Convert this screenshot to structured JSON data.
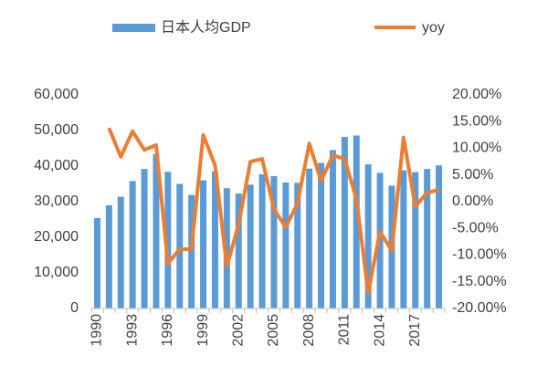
{
  "chart_data": {
    "type": "bar-line",
    "categories": [
      "1990",
      null,
      null,
      "1993",
      null,
      null,
      "1996",
      null,
      null,
      "1999",
      null,
      null,
      "2002",
      null,
      null,
      "2005",
      null,
      null,
      "2008",
      null,
      null,
      "2011",
      null,
      null,
      "2014",
      null,
      null,
      "2017",
      null,
      null
    ],
    "series": [
      {
        "name": "日本人均GDP",
        "type": "bar",
        "color": "#5b9bd5",
        "values": [
          25400,
          29000,
          31400,
          35800,
          39200,
          43400,
          38400,
          35000,
          31900,
          36000,
          38500,
          33800,
          32300,
          34800,
          37700,
          37200,
          35400,
          35300,
          39300,
          40900,
          44500,
          48200,
          48600,
          40500,
          38100,
          34500,
          38800,
          38300,
          39200,
          40200
        ]
      },
      {
        "name": "yoy",
        "type": "line",
        "color": "#ed7d31",
        "axis": "y2",
        "values": [
          null,
          13.8,
          8.4,
          13.2,
          9.7,
          10.6,
          -11.6,
          -8.9,
          -8.9,
          12.5,
          6.8,
          -12.1,
          -4.3,
          7.5,
          8.0,
          -1.4,
          -4.8,
          -0.3,
          10.9,
          3.9,
          8.7,
          8.0,
          0.5,
          -17.1,
          -5.6,
          -9.2,
          12.0,
          -0.9,
          1.7,
          2.2
        ]
      }
    ],
    "ylim": [
      0,
      60000
    ],
    "yticks": [
      0,
      {
        "value": 10000,
        "label": "10,000"
      },
      {
        "value": 20000,
        "label": "20,000"
      },
      {
        "value": 30000,
        "label": "30,000"
      },
      {
        "value": 40000,
        "label": "40,000"
      },
      {
        "value": 50000,
        "label": "50,000"
      },
      {
        "value": 60000,
        "label": "60,000"
      }
    ],
    "y2lim": [
      -20,
      20
    ],
    "y2ticks": [
      {
        "value": 20,
        "label": "20.00%"
      },
      {
        "value": 15,
        "label": "15.00%"
      },
      {
        "value": 10,
        "label": "10.00%"
      },
      {
        "value": 5,
        "label": "5.00%"
      },
      {
        "value": 0,
        "label": "0.00%"
      },
      {
        "value": -5,
        "label": "-5.00%"
      },
      {
        "value": -10,
        "label": "-10.00%"
      },
      {
        "value": -15,
        "label": "-15.00%"
      },
      {
        "value": -20,
        "label": "-20.00%"
      }
    ],
    "grid": false
  }
}
